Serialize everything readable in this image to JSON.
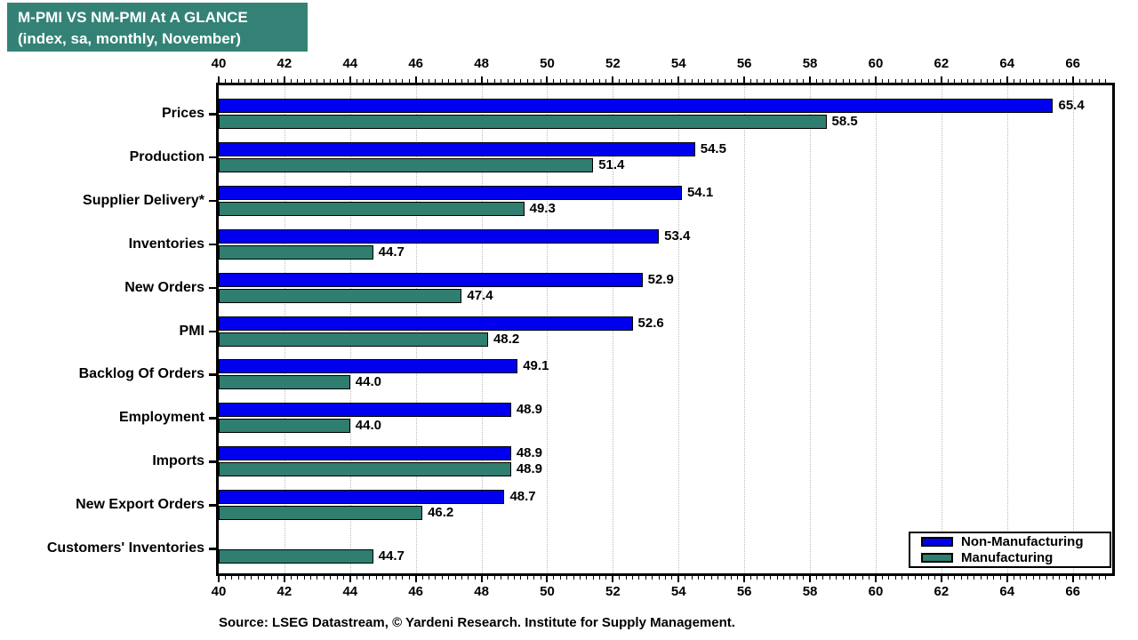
{
  "title": {
    "line1": "M-PMI VS NM-PMI At A GLANCE",
    "line2": "(index, sa, monthly, November)"
  },
  "source": "Source: LSEG Datastream, © Yardeni Research. Institute for Supply Management.",
  "colors": {
    "non_manufacturing": "#0000EE",
    "manufacturing": "#2F7E70",
    "title_box_bg": "#348276",
    "grid_line": "#BCBCBC",
    "axis": "#000000",
    "background": "#FFFFFF"
  },
  "legend": {
    "position": "bottom-right",
    "items": [
      {
        "label": "Non-Manufacturing",
        "color": "#0000EE"
      },
      {
        "label": "Manufacturing",
        "color": "#2F7E70"
      }
    ]
  },
  "chart_data": {
    "type": "bar",
    "orientation": "horizontal",
    "title": "M-PMI VS NM-PMI At A GLANCE",
    "subtitle": "(index, sa, monthly, November)",
    "categories": [
      "Prices",
      "Production",
      "Supplier Delivery*",
      "Inventories",
      "New Orders",
      "PMI",
      "Backlog Of Orders",
      "Employment",
      "Imports",
      "New Export Orders",
      "Customers' Inventories"
    ],
    "series": [
      {
        "name": "Non-Manufacturing",
        "color": "#0000EE",
        "values": [
          65.4,
          54.5,
          54.1,
          53.4,
          52.9,
          52.6,
          49.1,
          48.9,
          48.9,
          48.7,
          null
        ]
      },
      {
        "name": "Manufacturing",
        "color": "#2F7E70",
        "values": [
          58.5,
          51.4,
          49.3,
          44.7,
          47.4,
          48.2,
          44.0,
          44.0,
          48.9,
          46.2,
          44.7
        ]
      }
    ],
    "xlim": [
      40,
      67.2
    ],
    "xticks": [
      40,
      42,
      44,
      46,
      48,
      50,
      52,
      54,
      56,
      58,
      60,
      62,
      64,
      66
    ],
    "minor_tick_step": 0.2,
    "grid": "vertical-dotted-at-major-ticks",
    "legend_position": "bottom-right",
    "value_label_format": "one-decimal"
  }
}
